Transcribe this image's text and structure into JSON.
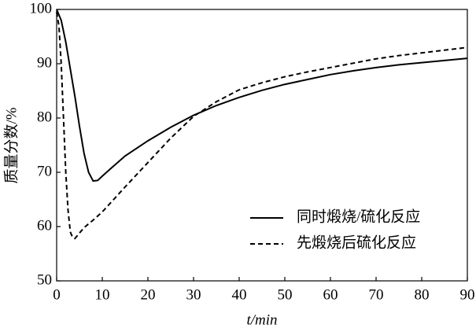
{
  "chart_data": {
    "type": "line",
    "xlabel": "t/min",
    "ylabel": "质量分数/%",
    "xlim": [
      0,
      90
    ],
    "xticks": [
      0,
      10,
      20,
      30,
      40,
      50,
      60,
      70,
      80,
      90
    ],
    "ylim": [
      50,
      100
    ],
    "yticks": [
      50,
      60,
      70,
      80,
      90,
      100
    ],
    "legend": "lower right",
    "series": [
      {
        "name": "同时煅烧/硫化反应",
        "color": "#000000",
        "dash": "solid",
        "x": [
          0,
          1,
          2,
          3,
          4,
          5,
          6,
          7,
          8,
          9,
          10,
          12,
          15,
          20,
          25,
          30,
          35,
          40,
          45,
          50,
          55,
          60,
          65,
          70,
          75,
          80,
          85,
          90
        ],
        "values": [
          100,
          98,
          94,
          89,
          84,
          78.5,
          73.5,
          70,
          68.4,
          68.5,
          69.3,
          70.8,
          73,
          75.8,
          78.3,
          80.5,
          82.3,
          83.8,
          85.1,
          86.2,
          87.1,
          88,
          88.7,
          89.3,
          89.8,
          90.2,
          90.6,
          91
        ]
      },
      {
        "name": "先煅烧后硫化反应",
        "color": "#000000",
        "dash": "dashed",
        "x": [
          0,
          0.5,
          1,
          1.5,
          2,
          2.5,
          3,
          3.5,
          4,
          5,
          6,
          8,
          10,
          15,
          20,
          25,
          30,
          35,
          40,
          45,
          50,
          55,
          60,
          65,
          70,
          75,
          80,
          85,
          90
        ],
        "values": [
          99.5,
          97,
          90,
          80,
          70,
          63,
          59,
          58,
          57.8,
          58.8,
          59.8,
          61.2,
          62.7,
          67.3,
          71.8,
          76.3,
          80.3,
          83,
          85.2,
          86.5,
          87.6,
          88.5,
          89.3,
          90.1,
          90.9,
          91.5,
          92,
          92.5,
          93
        ]
      }
    ]
  }
}
